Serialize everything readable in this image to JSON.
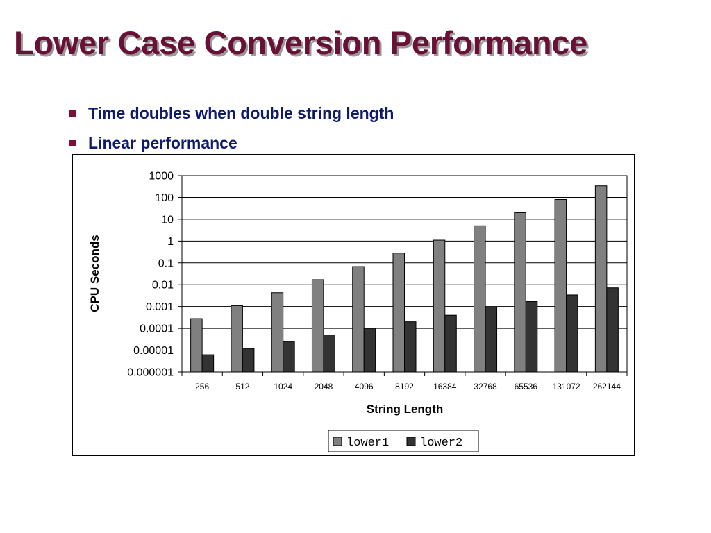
{
  "slide": {
    "title": "Lower Case Conversion Performance",
    "bullets": [
      "Time doubles when double string length",
      "Linear performance"
    ]
  },
  "colors": {
    "title": "#6a0f35",
    "title_shadow": "#9a9a9a",
    "bullet_text": "#0e1a6e",
    "bullet_marker": "#7a1035",
    "series_lower1": "#808080",
    "series_lower2": "#333333"
  },
  "chart_data": {
    "type": "bar",
    "ylabel": "CPU Seconds",
    "xlabel": "String Length",
    "yscale": "log",
    "ylim": [
      1e-06,
      1000
    ],
    "yticks": [
      "1000",
      "100",
      "10",
      "1",
      "0.1",
      "0.01",
      "0.001",
      "0.0001",
      "0.00001",
      "0.000001"
    ],
    "categories": [
      "256",
      "512",
      "1024",
      "2048",
      "4096",
      "8192",
      "16384",
      "32768",
      "65536",
      "131072",
      "262144"
    ],
    "grid": true,
    "legend_position": "bottom",
    "series": [
      {
        "name": "lower1",
        "color": "#808080",
        "values": [
          0.00028,
          0.0011,
          0.0043,
          0.017,
          0.068,
          0.28,
          1.1,
          5,
          20,
          80,
          340
        ]
      },
      {
        "name": "lower2",
        "color": "#333333",
        "values": [
          6.2e-06,
          1.2e-05,
          2.5e-05,
          5e-05,
          0.0001,
          0.0002,
          0.0004,
          0.00095,
          0.0017,
          0.0034,
          0.0072
        ]
      }
    ]
  }
}
